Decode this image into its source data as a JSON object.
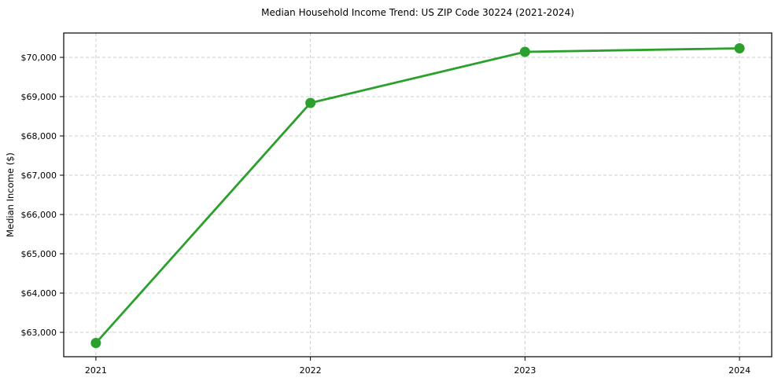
{
  "chart_data": {
    "type": "line",
    "title": "Median Household Income Trend: US ZIP Code 30224 (2021-2024)",
    "xlabel": "",
    "ylabel": "Median Income ($)",
    "x": [
      2021,
      2022,
      2023,
      2024
    ],
    "x_tick_labels": [
      "2021",
      "2022",
      "2023",
      "2024"
    ],
    "series": [
      {
        "values": [
          62730,
          68840,
          70140,
          70230
        ],
        "color": "#2ca02c",
        "marker": "circle"
      }
    ],
    "y_ticks": [
      63000,
      64000,
      65000,
      66000,
      67000,
      68000,
      69000,
      70000
    ],
    "y_tick_labels": [
      "$63,000",
      "$64,000",
      "$65,000",
      "$66,000",
      "$67,000",
      "$68,000",
      "$69,000",
      "$70,000"
    ],
    "xlim": [
      2020.85,
      2024.15
    ],
    "ylim": [
      62380,
      70620
    ],
    "grid": true,
    "grid_style": "dashed",
    "legend": null,
    "colors": {
      "line": "#2ca02c",
      "grid": "#cccccc",
      "axis": "#000000",
      "text": "#000000",
      "background": "#ffffff"
    }
  }
}
